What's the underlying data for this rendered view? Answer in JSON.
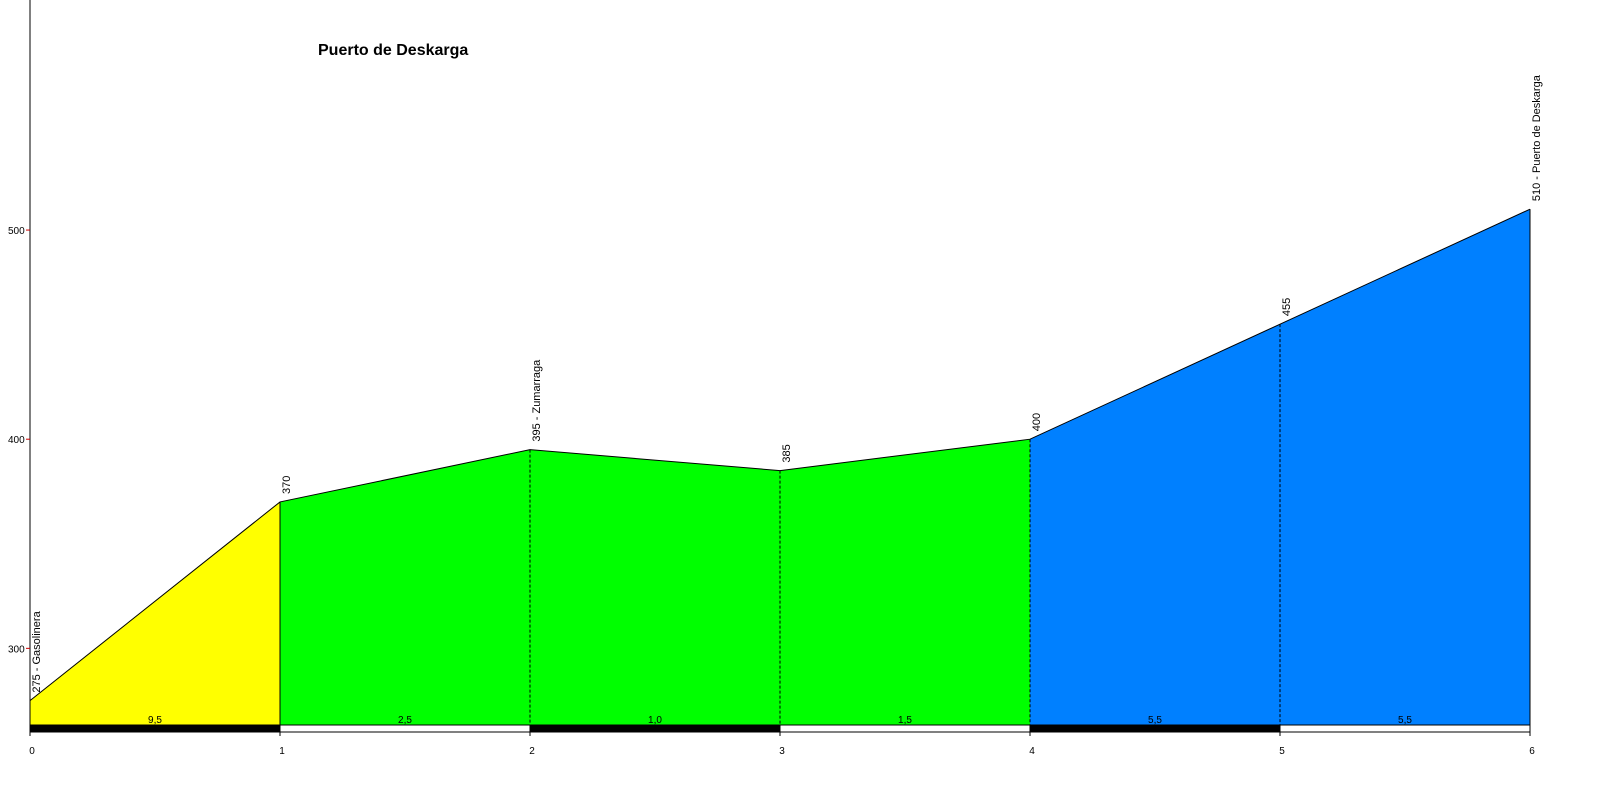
{
  "chart_data": {
    "type": "area",
    "title": "Puerto de Deskarga",
    "xlabel": "",
    "ylabel": "",
    "x_ticks": [
      0,
      1,
      2,
      3,
      4,
      5,
      6
    ],
    "y_ticks": [
      300,
      400,
      500
    ],
    "xlim": [
      0,
      6
    ],
    "ylim": [
      260,
      610
    ],
    "grid": false,
    "points": [
      {
        "x": 0,
        "y": 275,
        "label": "275 - Gasolinera"
      },
      {
        "x": 1,
        "y": 370,
        "label": "370"
      },
      {
        "x": 2,
        "y": 395,
        "label": "395 - Zumarraga"
      },
      {
        "x": 3,
        "y": 385,
        "label": "385"
      },
      {
        "x": 4,
        "y": 400,
        "label": "400"
      },
      {
        "x": 5,
        "y": 455,
        "label": "455"
      },
      {
        "x": 6,
        "y": 510,
        "label": "510 - Puerto de Deskarga"
      }
    ],
    "segments": [
      {
        "from": 0,
        "to": 1,
        "gradient": "9,5",
        "color": "#ffff00",
        "bar_color": "#000000"
      },
      {
        "from": 1,
        "to": 2,
        "gradient": "2,5",
        "color": "#00ff00",
        "bar_color": "#ffffff"
      },
      {
        "from": 2,
        "to": 3,
        "gradient": "1,0",
        "color": "#00ff00",
        "bar_color": "#000000"
      },
      {
        "from": 3,
        "to": 4,
        "gradient": "1,5",
        "color": "#00ff00",
        "bar_color": "#ffffff"
      },
      {
        "from": 4,
        "to": 5,
        "gradient": "5,5",
        "color": "#0080ff",
        "bar_color": "#000000"
      },
      {
        "from": 5,
        "to": 6,
        "gradient": "5,5",
        "color": "#0080ff",
        "bar_color": "#ffffff"
      }
    ],
    "colors": {
      "axis": "#000000",
      "y_tick_mark": "#cc0000",
      "outline": "#000000"
    }
  }
}
